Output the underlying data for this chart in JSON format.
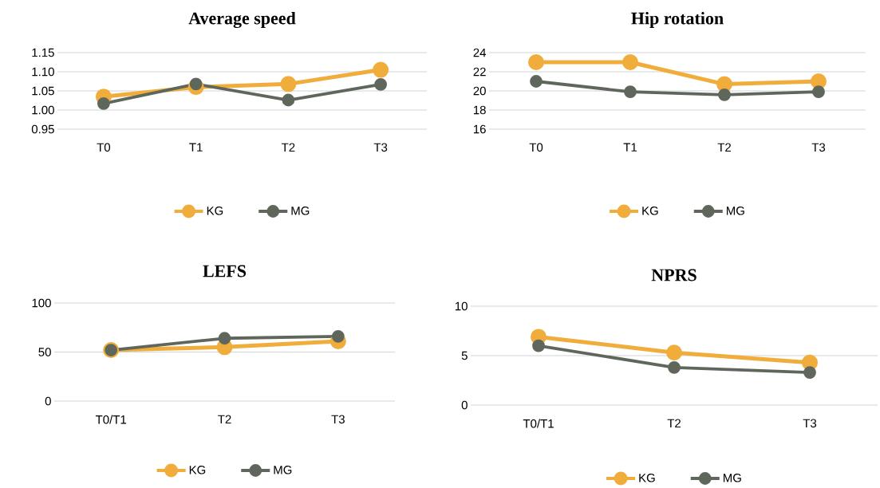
{
  "chart_data": [
    {
      "type": "line",
      "title": "Average speed",
      "categories": [
        "T0",
        "T1",
        "T2",
        "T3"
      ],
      "series": [
        {
          "name": "KG",
          "color": "#f0ad3c",
          "values": [
            1.035,
            1.06,
            1.068,
            1.105
          ]
        },
        {
          "name": "MG",
          "color": "#5f665c",
          "values": [
            1.017,
            1.068,
            1.026,
            1.067
          ]
        }
      ],
      "ylim": [
        0.95,
        1.15
      ],
      "yticks": [
        0.95,
        {
          "value": 1.0,
          "label": "1.00"
        },
        1.05,
        {
          "value": 1.1,
          "label": "1.10"
        },
        1.15
      ],
      "grid": "y",
      "legend": "bottom",
      "marker": "circle",
      "line_style": "solid"
    },
    {
      "type": "line",
      "title": "Hip rotation",
      "categories": [
        "T0",
        "T1",
        "T2",
        "T3"
      ],
      "series": [
        {
          "name": "KG",
          "color": "#f0ad3c",
          "values": [
            23.0,
            23.0,
            20.7,
            21.0
          ]
        },
        {
          "name": "MG",
          "color": "#5f665c",
          "values": [
            21.0,
            19.9,
            19.6,
            19.9
          ]
        }
      ],
      "ylim": [
        16,
        24
      ],
      "yticks": [
        16,
        18,
        20,
        22,
        24
      ],
      "grid": "y",
      "legend": "bottom",
      "marker": "circle",
      "line_style": "solid"
    },
    {
      "type": "line",
      "title": "LEFS",
      "categories": [
        "T0/T1",
        "T2",
        "T3"
      ],
      "series": [
        {
          "name": "KG",
          "color": "#f0ad3c",
          "values": [
            52,
            55,
            61
          ]
        },
        {
          "name": "MG",
          "color": "#5f665c",
          "values": [
            52,
            64,
            66
          ]
        }
      ],
      "ylim": [
        0,
        100
      ],
      "yticks": [
        0,
        50,
        100
      ],
      "grid": "y",
      "legend": "bottom",
      "marker": "circle",
      "line_style": "solid"
    },
    {
      "type": "line",
      "title": "NPRS",
      "categories": [
        "T0/T1",
        "T2",
        "T3"
      ],
      "series": [
        {
          "name": "KG",
          "color": "#f0ad3c",
          "values": [
            6.9,
            5.3,
            4.3
          ]
        },
        {
          "name": "MG",
          "color": "#5f665c",
          "values": [
            6.0,
            3.8,
            3.3
          ]
        }
      ],
      "ylim": [
        0,
        10
      ],
      "yticks": [
        0,
        5,
        10
      ],
      "grid": "y",
      "legend": "bottom",
      "marker": "circle",
      "line_style": "solid"
    }
  ]
}
